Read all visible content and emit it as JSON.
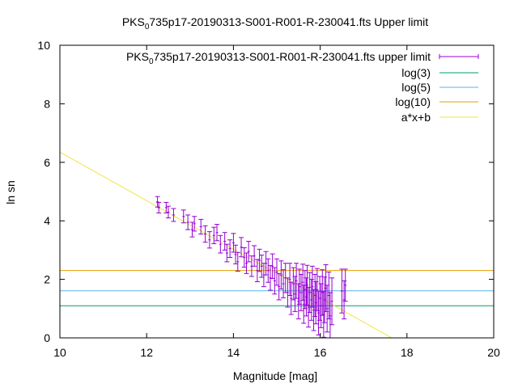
{
  "chart_data": {
    "type": "scatter",
    "title": {
      "pre": "PKS",
      "sub": "0",
      "post": "735p17-20190313-S001-R001-R-230041.fts Upper limit"
    },
    "xlabel": "Magnitude [mag]",
    "ylabel": "ln sn",
    "xlim": [
      10,
      20
    ],
    "ylim": [
      0,
      10
    ],
    "x_ticks": [
      10,
      12,
      14,
      16,
      18,
      20
    ],
    "y_ticks": [
      0,
      2,
      4,
      6,
      8,
      10
    ],
    "grid": false,
    "legend_position": "top-right",
    "series": [
      {
        "name": {
          "pre": "PKS",
          "sub": "0",
          "post": "735p17-20190313-S001-R001-R-230041.fts upper limit"
        },
        "kind": "errorbar",
        "color": "#9400d3",
        "points": [
          [
            12.25,
            4.65,
            0.18
          ],
          [
            12.28,
            4.45,
            0.18
          ],
          [
            12.45,
            4.45,
            0.18
          ],
          [
            12.5,
            4.3,
            0.2
          ],
          [
            12.62,
            4.2,
            0.22
          ],
          [
            12.85,
            4.15,
            0.22
          ],
          [
            12.95,
            3.95,
            0.25
          ],
          [
            13.05,
            3.7,
            0.25
          ],
          [
            13.1,
            3.9,
            0.25
          ],
          [
            13.25,
            3.8,
            0.25
          ],
          [
            13.35,
            3.55,
            0.28
          ],
          [
            13.45,
            3.35,
            0.28
          ],
          [
            13.55,
            3.5,
            0.28
          ],
          [
            13.62,
            3.6,
            0.28
          ],
          [
            13.7,
            3.2,
            0.3
          ],
          [
            13.8,
            3.3,
            0.3
          ],
          [
            13.85,
            2.9,
            0.3
          ],
          [
            13.92,
            3.05,
            0.3
          ],
          [
            14.0,
            3.25,
            0.32
          ],
          [
            14.05,
            2.85,
            0.32
          ],
          [
            14.1,
            2.6,
            0.32
          ],
          [
            14.18,
            3.1,
            0.33
          ],
          [
            14.25,
            2.75,
            0.33
          ],
          [
            14.3,
            2.55,
            0.35
          ],
          [
            14.35,
            2.95,
            0.35
          ],
          [
            14.42,
            2.45,
            0.35
          ],
          [
            14.48,
            2.8,
            0.35
          ],
          [
            14.55,
            2.3,
            0.38
          ],
          [
            14.6,
            2.65,
            0.38
          ],
          [
            14.65,
            2.45,
            0.38
          ],
          [
            14.7,
            2.15,
            0.4
          ],
          [
            14.75,
            2.55,
            0.4
          ],
          [
            14.8,
            2.3,
            0.4
          ],
          [
            14.85,
            2.05,
            0.42
          ],
          [
            14.9,
            2.45,
            0.42
          ],
          [
            14.95,
            1.95,
            0.45
          ],
          [
            15.0,
            2.25,
            0.45
          ],
          [
            15.05,
            1.75,
            0.45
          ],
          [
            15.1,
            2.15,
            0.48
          ],
          [
            15.15,
            1.85,
            0.48
          ],
          [
            15.2,
            2.05,
            0.5
          ],
          [
            15.25,
            1.55,
            0.5
          ],
          [
            15.3,
            2.0,
            0.55
          ],
          [
            15.33,
            1.35,
            0.55
          ],
          [
            15.38,
            1.85,
            0.55
          ],
          [
            15.42,
            1.5,
            0.6
          ],
          [
            15.45,
            1.95,
            0.6
          ],
          [
            15.5,
            1.25,
            0.6
          ],
          [
            15.52,
            1.75,
            0.6
          ],
          [
            15.56,
            1.55,
            0.62
          ],
          [
            15.6,
            1.9,
            0.62
          ],
          [
            15.62,
            1.15,
            0.65
          ],
          [
            15.65,
            1.65,
            0.65
          ],
          [
            15.68,
            1.4,
            0.65
          ],
          [
            15.7,
            1.8,
            0.68
          ],
          [
            15.73,
            1.05,
            0.68
          ],
          [
            15.76,
            1.55,
            0.68
          ],
          [
            15.8,
            1.3,
            0.7
          ],
          [
            15.82,
            1.75,
            0.7
          ],
          [
            15.85,
            0.95,
            0.7
          ],
          [
            15.88,
            1.45,
            0.72
          ],
          [
            15.9,
            1.2,
            0.72
          ],
          [
            15.93,
            1.65,
            0.72
          ],
          [
            15.96,
            0.85,
            0.75
          ],
          [
            15.99,
            1.35,
            0.75
          ],
          [
            16.02,
            1.1,
            0.75
          ],
          [
            16.05,
            1.55,
            0.78
          ],
          [
            16.08,
            0.8,
            0.78
          ],
          [
            16.1,
            1.3,
            0.78
          ],
          [
            16.13,
            1.7,
            0.8
          ],
          [
            16.16,
            1.0,
            0.8
          ],
          [
            16.2,
            1.45,
            0.8
          ],
          [
            16.23,
            0.75,
            0.8
          ],
          [
            16.27,
            1.25,
            0.8
          ],
          [
            16.5,
            1.6,
            0.75
          ],
          [
            16.55,
            1.3,
            0.65
          ],
          [
            16.58,
            1.8,
            0.55
          ]
        ]
      },
      {
        "name": "log(3)",
        "kind": "hline",
        "y": 1.0986,
        "color": "#009e73"
      },
      {
        "name": "log(5)",
        "kind": "hline",
        "y": 1.6094,
        "color": "#56b4e9"
      },
      {
        "name": "log(10)",
        "kind": "hline",
        "y": 2.3026,
        "color": "#e69f00"
      },
      {
        "name": "a*x+b",
        "kind": "line",
        "x": [
          10,
          17.65
        ],
        "y": [
          6.35,
          0
        ],
        "color": "#f0e442"
      }
    ]
  }
}
